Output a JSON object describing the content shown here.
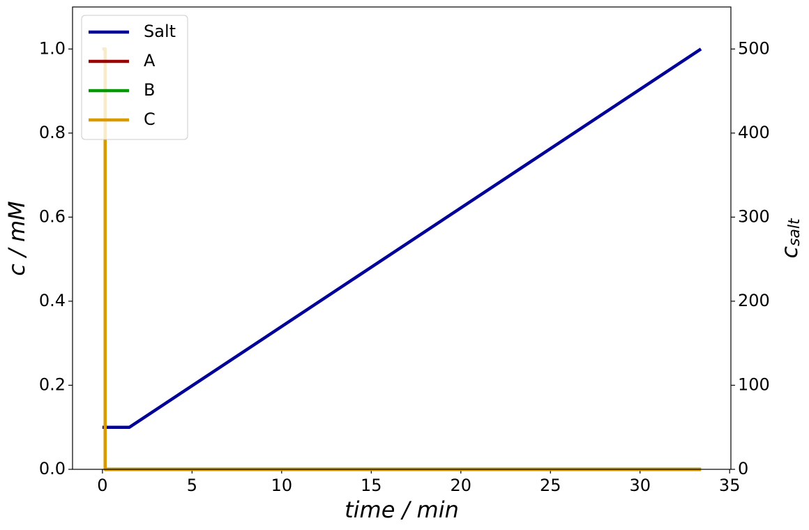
{
  "chart_data": {
    "type": "line",
    "xlabel": "time / min",
    "ylabel": "c / mM",
    "y2label": "c",
    "y2label_sub": "salt",
    "xlim": [
      -1.67,
      35.07
    ],
    "xticks": [
      0,
      5,
      10,
      15,
      20,
      25,
      30,
      35
    ],
    "ylim": [
      0,
      1.1
    ],
    "yticks": [
      {
        "value": 0,
        "label": "0.0"
      },
      0.2,
      0.4,
      0.6,
      0.8,
      {
        "value": 1,
        "label": "1.0"
      }
    ],
    "y2lim": [
      0,
      550
    ],
    "y2ticks": [
      0,
      100,
      200,
      300,
      400,
      500
    ],
    "legend": "upper-left",
    "series": [
      {
        "name": "Salt",
        "color": "#000099",
        "axis": "y2",
        "x": [
          0,
          1.5,
          33.4
        ],
        "values": [
          50,
          50,
          500
        ]
      },
      {
        "name": "A",
        "color": "#990000",
        "x": [
          0,
          0.15,
          0.15,
          33.4
        ],
        "values": [
          1,
          1,
          0,
          0
        ]
      },
      {
        "name": "B",
        "color": "#009900",
        "x": [
          0,
          0.15,
          0.15,
          33.4
        ],
        "values": [
          1,
          1,
          0,
          0
        ]
      },
      {
        "name": "C",
        "color": "#d99a00",
        "x": [
          0,
          0.15,
          0.15,
          33.4
        ],
        "values": [
          1,
          1,
          0,
          0
        ]
      }
    ]
  }
}
